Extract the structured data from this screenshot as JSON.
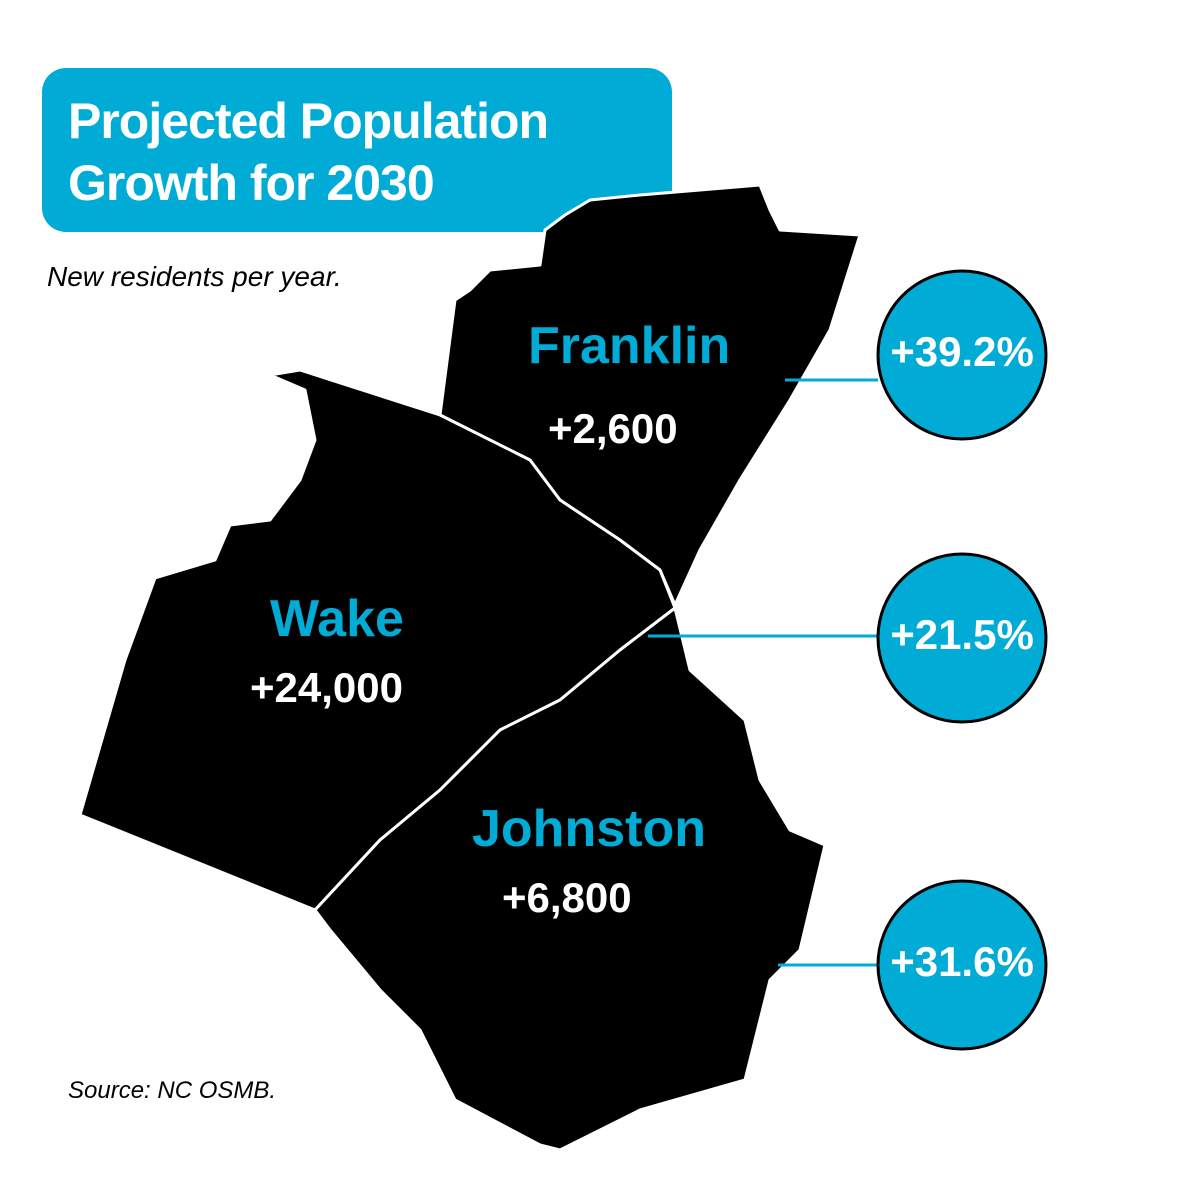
{
  "header": {
    "title": [
      "Projected Population",
      "Growth for 2030"
    ],
    "subtitle": "New residents per year."
  },
  "counties": [
    {
      "name": "Franklin",
      "residents": "+2,600",
      "growth": "+39.2%"
    },
    {
      "name": "Wake",
      "residents": "+24,000",
      "growth": "+21.5%"
    },
    {
      "name": "Johnston",
      "residents": "+6,800",
      "growth": "+31.6%"
    }
  ],
  "source": "Source: NC OSMB."
}
